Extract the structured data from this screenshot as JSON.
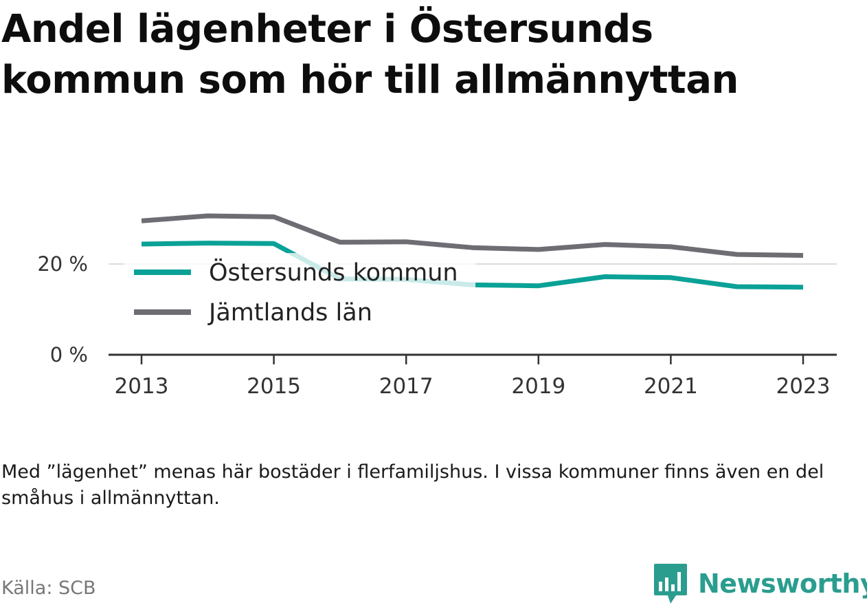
{
  "title_line1": "Andel lägenheter i Östersunds",
  "title_line2": "kommun som hör till allmännyttan",
  "note": "Med ”lägenhet” menas här bostäder i flerfamiljshus. I vissa kommuner finns även en del småhus i allmännyttan.",
  "source": "Källa: SCB",
  "brand": {
    "name": "Newsworthy",
    "icon": "newsworthy-logo-icon",
    "color": "#2a9d8f"
  },
  "chart_data": {
    "type": "line",
    "x": [
      2013,
      2014,
      2015,
      2016,
      2017,
      2018,
      2019,
      2020,
      2021,
      2022,
      2023
    ],
    "x_ticks": [
      "2013",
      "2015",
      "2017",
      "2019",
      "2021",
      "2023"
    ],
    "y_ticks": [
      {
        "value": 0,
        "label": "0 %"
      },
      {
        "value": 20,
        "label": "20 %"
      }
    ],
    "ylim": [
      0,
      35
    ],
    "grid": true,
    "legend_position": "inside-left",
    "series": [
      {
        "name": "Östersunds kommun",
        "color": "#0aa197",
        "values": [
          24.4,
          24.6,
          24.5,
          16.7,
          16.6,
          15.4,
          15.2,
          17.2,
          17.0,
          15.0,
          14.9
        ]
      },
      {
        "name": "Jämtlands län",
        "color": "#6e6d74",
        "values": [
          29.5,
          30.6,
          30.4,
          24.8,
          24.9,
          23.6,
          23.2,
          24.3,
          23.8,
          22.1,
          21.9
        ]
      }
    ]
  }
}
